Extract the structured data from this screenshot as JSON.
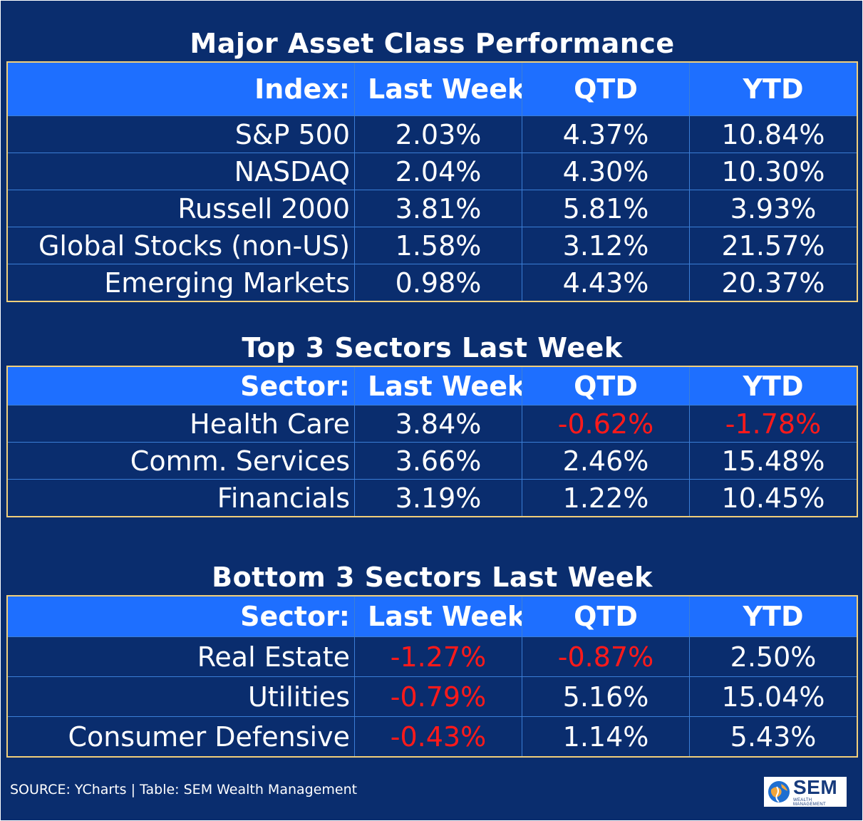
{
  "tables": [
    {
      "title": "Major Asset Class Performance",
      "headers": [
        "Index:",
        "Last Week",
        "QTD",
        "YTD"
      ],
      "rows": [
        {
          "name": "S&P 500",
          "last_week": "2.03%",
          "qtd": "4.37%",
          "ytd": "10.84%"
        },
        {
          "name": "NASDAQ",
          "last_week": "2.04%",
          "qtd": "4.30%",
          "ytd": "10.30%"
        },
        {
          "name": "Russell 2000",
          "last_week": "3.81%",
          "qtd": "5.81%",
          "ytd": "3.93%"
        },
        {
          "name": "Global Stocks (non-US)",
          "last_week": "1.58%",
          "qtd": "3.12%",
          "ytd": "21.57%"
        },
        {
          "name": "Emerging Markets",
          "last_week": "0.98%",
          "qtd": "4.43%",
          "ytd": "20.37%"
        }
      ]
    },
    {
      "title": "Top 3 Sectors Last Week",
      "headers": [
        "Sector:",
        "Last Week",
        "QTD",
        "YTD"
      ],
      "rows": [
        {
          "name": "Health Care",
          "last_week": "3.84%",
          "qtd": "-0.62%",
          "ytd": "-1.78%"
        },
        {
          "name": "Comm. Services",
          "last_week": "3.66%",
          "qtd": "2.46%",
          "ytd": "15.48%"
        },
        {
          "name": "Financials",
          "last_week": "3.19%",
          "qtd": "1.22%",
          "ytd": "10.45%"
        }
      ]
    },
    {
      "title": "Bottom 3 Sectors Last Week",
      "headers": [
        "Sector:",
        "Last Week",
        "QTD",
        "YTD"
      ],
      "rows": [
        {
          "name": "Real Estate",
          "last_week": "-1.27%",
          "qtd": "-0.87%",
          "ytd": "2.50%"
        },
        {
          "name": "Utilities",
          "last_week": "-0.79%",
          "qtd": "5.16%",
          "ytd": "15.04%"
        },
        {
          "name": "Consumer Defensive",
          "last_week": "-0.43%",
          "qtd": "1.14%",
          "ytd": "5.43%"
        }
      ]
    }
  ],
  "footer": {
    "source": "SOURCE: YCharts | Table: SEM Wealth Management"
  },
  "logo": {
    "text": "SEM",
    "subtext": "WEALTH MANAGEMENT",
    "icon": "sem-globe-icon"
  },
  "colors": {
    "background": "#0a2d6e",
    "header": "#1e6fff",
    "border": "#f2cf7a",
    "negative": "#ff1a1a",
    "text": "#ffffff"
  }
}
